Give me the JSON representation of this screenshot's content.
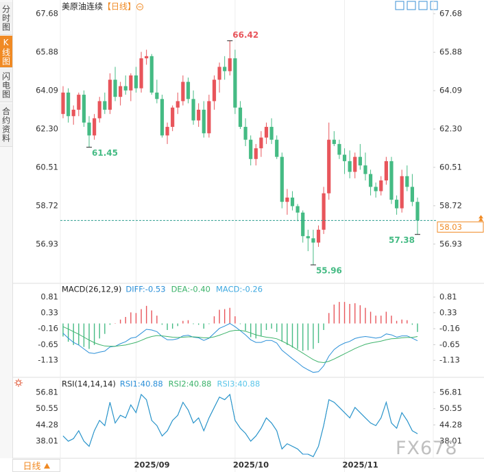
{
  "header": {
    "title": "美原油连续",
    "period": "【日线】"
  },
  "sidebar_tabs": [
    "分时图",
    "K线图",
    "闪电图",
    "合约资料"
  ],
  "period_selector": "日线",
  "watermark": "FX678",
  "chart_data": [
    {
      "type": "candlestick",
      "categories": [
        null,
        null,
        null,
        null,
        null,
        null,
        null,
        null,
        null,
        null,
        null,
        null,
        null,
        null,
        "2025/09",
        null,
        null,
        null,
        null,
        null,
        null,
        null,
        null,
        null,
        null,
        null,
        null,
        null,
        null,
        null,
        null,
        null,
        null,
        "2025/10",
        null,
        null,
        null,
        null,
        null,
        null,
        null,
        null,
        null,
        null,
        null,
        null,
        null,
        null,
        null,
        null,
        null,
        null,
        null,
        null,
        "2025/11",
        null,
        null,
        null,
        null,
        null,
        null,
        null,
        null,
        null,
        null,
        null,
        null,
        null,
        null
      ],
      "open": [
        63.0,
        64.0,
        62.9,
        63.2,
        63.9,
        62.6,
        62.0,
        62.8,
        63.6,
        63.2,
        64.6,
        63.8,
        64.3,
        64.1,
        64.8,
        64.2,
        65.6,
        65.7,
        64.0,
        63.7,
        62.0,
        62.4,
        63.3,
        63.6,
        64.5,
        63.7,
        62.7,
        63.2,
        62.1,
        63.6,
        64.6,
        65.2,
        65.0,
        65.6,
        63.3,
        62.4,
        61.8,
        60.9,
        61.4,
        61.9,
        62.4,
        61.8,
        61.0,
        58.9,
        59.1,
        58.7,
        58.4,
        57.3,
        57.2,
        57.0,
        57.6,
        59.3,
        61.8,
        61.6,
        61.1,
        60.8,
        60.3,
        61.0,
        60.6,
        60.2,
        59.6,
        59.4,
        59.9,
        60.8,
        59.0,
        58.6,
        60.1,
        59.6,
        58.9
      ],
      "high": [
        64.3,
        64.2,
        63.4,
        64.0,
        64.1,
        62.9,
        63.0,
        63.8,
        64.0,
        64.9,
        65.2,
        64.5,
        64.8,
        64.9,
        65.2,
        65.9,
        66.0,
        65.8,
        64.6,
        63.9,
        62.6,
        63.4,
        64.0,
        64.8,
        64.7,
        64.1,
        63.5,
        63.6,
        63.9,
        64.8,
        65.4,
        65.7,
        66.42,
        66.0,
        63.6,
        62.8,
        62.0,
        61.6,
        62.2,
        62.6,
        62.8,
        62.0,
        61.2,
        59.5,
        59.4,
        58.8,
        58.5,
        57.6,
        57.6,
        57.8,
        59.6,
        62.6,
        62.2,
        61.8,
        61.4,
        61.3,
        61.2,
        61.6,
        61.2,
        60.4,
        59.8,
        60.1,
        61.0,
        61.0,
        59.2,
        60.4,
        60.6,
        60.2,
        59.1
      ],
      "low": [
        62.8,
        62.6,
        62.5,
        62.9,
        62.4,
        61.45,
        61.8,
        62.6,
        63.0,
        63.0,
        63.6,
        63.4,
        63.9,
        63.6,
        64.0,
        64.0,
        65.3,
        63.9,
        63.5,
        61.9,
        61.6,
        62.2,
        63.0,
        63.4,
        63.5,
        62.5,
        62.4,
        61.9,
        61.9,
        63.2,
        64.0,
        64.6,
        64.8,
        63.0,
        62.3,
        61.5,
        60.6,
        60.6,
        61.0,
        61.6,
        61.6,
        60.9,
        58.6,
        58.3,
        58.5,
        58.0,
        57.0,
        56.6,
        55.96,
        56.8,
        57.4,
        59.0,
        61.5,
        60.9,
        60.2,
        60.0,
        60.0,
        60.4,
        59.9,
        59.2,
        59.1,
        59.2,
        59.7,
        58.8,
        58.3,
        58.4,
        59.4,
        58.7,
        57.38
      ],
      "close": [
        64.0,
        62.9,
        63.2,
        63.9,
        62.6,
        62.0,
        62.8,
        63.6,
        63.2,
        64.6,
        63.8,
        64.3,
        64.1,
        64.8,
        64.2,
        65.6,
        65.7,
        64.0,
        63.7,
        62.0,
        62.4,
        63.3,
        63.6,
        64.5,
        63.7,
        62.7,
        63.2,
        62.1,
        63.6,
        64.6,
        65.2,
        65.0,
        65.6,
        63.3,
        62.4,
        61.8,
        60.9,
        61.4,
        61.9,
        62.4,
        61.8,
        61.0,
        58.9,
        59.1,
        58.7,
        58.4,
        57.3,
        57.2,
        57.0,
        57.6,
        59.3,
        61.8,
        61.6,
        61.1,
        60.8,
        60.3,
        61.0,
        60.6,
        60.2,
        59.6,
        59.4,
        59.9,
        60.8,
        59.0,
        58.6,
        60.1,
        59.6,
        58.9,
        58.03
      ],
      "up_color": "#e8555b",
      "down_color": "#45bb84",
      "last_price_color": "#f08a24",
      "last_line_color": "#2a9d8f",
      "annotations": [
        "66.42",
        "61.45",
        "55.96",
        "57.38"
      ],
      "ylim": [
        55.13,
        68.0
      ],
      "yticks": [
        67.68,
        65.88,
        64.09,
        {
          "value": 62.3,
          "label": "62.30"
        },
        60.51,
        58.72,
        56.93
      ],
      "grid": true
    },
    {
      "type": "macd",
      "title": "MACD(26,12,9)",
      "ylim": [
        -1.61,
        1.21
      ],
      "yticks": [
        0.81,
        0.33,
        -0.16,
        -0.65,
        -1.13
      ],
      "series": [
        {
          "name": "DIFF:-0.53",
          "color": "#2a8fd8",
          "kind": "line",
          "values": [
            -0.3,
            -0.45,
            -0.58,
            -0.66,
            -0.78,
            -0.9,
            -0.92,
            -0.88,
            -0.85,
            -0.72,
            -0.7,
            -0.62,
            -0.56,
            -0.45,
            -0.42,
            -0.3,
            -0.18,
            -0.2,
            -0.25,
            -0.4,
            -0.5,
            -0.5,
            -0.47,
            -0.38,
            -0.36,
            -0.42,
            -0.44,
            -0.52,
            -0.45,
            -0.3,
            -0.15,
            -0.08,
            0.0,
            -0.1,
            -0.22,
            -0.35,
            -0.5,
            -0.58,
            -0.58,
            -0.52,
            -0.52,
            -0.6,
            -0.82,
            -0.95,
            -1.08,
            -1.2,
            -1.33,
            -1.42,
            -1.5,
            -1.48,
            -1.3,
            -1.0,
            -0.8,
            -0.68,
            -0.6,
            -0.55,
            -0.46,
            -0.42,
            -0.4,
            -0.42,
            -0.45,
            -0.42,
            -0.32,
            -0.35,
            -0.42,
            -0.38,
            -0.38,
            -0.45,
            -0.53
          ]
        },
        {
          "name": "DEA:-0.40",
          "color": "#3db36b",
          "kind": "line",
          "values": [
            -0.1,
            -0.17,
            -0.25,
            -0.33,
            -0.42,
            -0.51,
            -0.59,
            -0.65,
            -0.69,
            -0.7,
            -0.7,
            -0.68,
            -0.66,
            -0.62,
            -0.58,
            -0.52,
            -0.45,
            -0.4,
            -0.37,
            -0.38,
            -0.4,
            -0.42,
            -0.43,
            -0.42,
            -0.41,
            -0.41,
            -0.42,
            -0.44,
            -0.44,
            -0.41,
            -0.36,
            -0.3,
            -0.24,
            -0.21,
            -0.21,
            -0.24,
            -0.29,
            -0.35,
            -0.39,
            -0.42,
            -0.44,
            -0.47,
            -0.54,
            -0.62,
            -0.71,
            -0.81,
            -0.91,
            -1.01,
            -1.11,
            -1.18,
            -1.2,
            -1.16,
            -1.09,
            -1.01,
            -0.93,
            -0.85,
            -0.77,
            -0.7,
            -0.64,
            -0.6,
            -0.57,
            -0.54,
            -0.5,
            -0.47,
            -0.46,
            -0.44,
            -0.43,
            -0.43,
            -0.4
          ]
        },
        {
          "name": "MACD:-0.26",
          "color": "#3fa9e0",
          "kind": "histogram",
          "up_color": "#e8555b",
          "down_color": "#45bb84",
          "values": [
            -0.4,
            -0.56,
            -0.66,
            -0.66,
            -0.72,
            -0.78,
            -0.66,
            -0.46,
            -0.32,
            -0.04,
            0.0,
            0.12,
            0.2,
            0.34,
            0.32,
            0.44,
            0.54,
            0.4,
            0.24,
            -0.04,
            -0.2,
            -0.16,
            -0.08,
            0.08,
            0.1,
            -0.02,
            -0.04,
            -0.16,
            -0.02,
            0.22,
            0.42,
            0.44,
            0.48,
            0.22,
            -0.02,
            -0.22,
            -0.42,
            -0.46,
            -0.38,
            -0.2,
            -0.16,
            -0.26,
            -0.56,
            -0.66,
            -0.74,
            -0.78,
            -0.84,
            -0.82,
            -0.78,
            -0.6,
            -0.2,
            0.32,
            0.58,
            0.66,
            0.66,
            0.6,
            0.62,
            0.56,
            0.48,
            0.36,
            0.24,
            0.24,
            0.36,
            0.24,
            0.08,
            0.12,
            0.1,
            -0.04,
            -0.26
          ]
        }
      ]
    },
    {
      "type": "line",
      "title": "RSI(14,14,14)",
      "ylim": [
        31.4,
        62.1
      ],
      "yticks": [
        56.81,
        50.55,
        44.28,
        38.01
      ],
      "series": [
        {
          "name": "RSI3:40.88",
          "color": "#5bc6ea",
          "values": [
            40,
            38,
            39,
            42,
            38,
            36,
            42,
            46,
            44,
            53,
            45,
            48,
            47,
            52,
            49,
            56,
            54,
            46,
            44,
            40,
            42,
            46,
            48,
            53,
            50,
            45,
            47,
            42,
            47,
            51,
            55,
            54,
            56,
            46,
            43,
            41,
            38,
            40,
            43,
            47,
            45,
            42,
            35,
            37,
            36,
            35,
            33,
            33,
            32,
            36,
            44,
            54,
            53,
            51,
            49,
            47,
            51,
            49,
            47,
            45,
            44,
            47,
            53,
            45,
            43,
            49,
            46,
            42,
            40.88
          ]
        },
        {
          "name": "RSI2:40.88",
          "color": "#3db36b",
          "values": [
            40,
            38,
            39,
            42,
            38,
            36,
            42,
            46,
            44,
            53,
            45,
            48,
            47,
            52,
            49,
            56,
            54,
            46,
            44,
            40,
            42,
            46,
            48,
            53,
            50,
            45,
            47,
            42,
            47,
            51,
            55,
            54,
            56,
            46,
            43,
            41,
            38,
            40,
            43,
            47,
            45,
            42,
            35,
            37,
            36,
            35,
            33,
            33,
            32,
            36,
            44,
            54,
            53,
            51,
            49,
            47,
            51,
            49,
            47,
            45,
            44,
            47,
            53,
            45,
            43,
            49,
            46,
            42,
            40.88
          ]
        },
        {
          "name": "RSI1:40.88",
          "color": "#2a8fd8",
          "values": [
            40,
            38,
            39,
            42,
            38,
            36,
            42,
            46,
            44,
            53,
            45,
            48,
            47,
            52,
            49,
            56,
            54,
            46,
            44,
            40,
            42,
            46,
            48,
            53,
            50,
            45,
            47,
            42,
            47,
            51,
            55,
            54,
            56,
            46,
            43,
            41,
            38,
            40,
            43,
            47,
            45,
            42,
            35,
            37,
            36,
            35,
            33,
            33,
            32,
            36,
            44,
            54,
            53,
            51,
            49,
            47,
            51,
            49,
            47,
            45,
            44,
            47,
            53,
            45,
            43,
            49,
            46,
            42,
            40.88
          ]
        }
      ]
    }
  ]
}
